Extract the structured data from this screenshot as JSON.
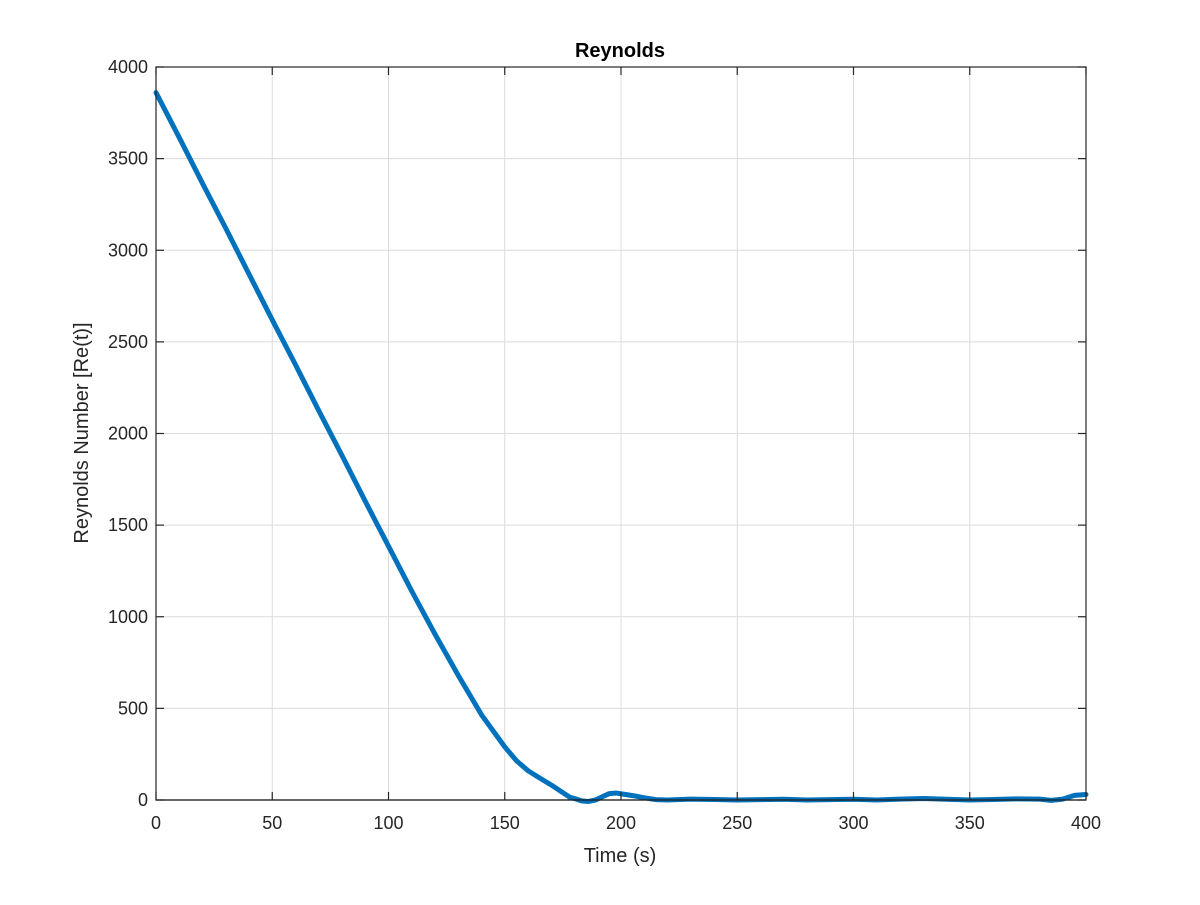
{
  "chart_data": {
    "type": "line",
    "title": "Reynolds",
    "xlabel": "Time (s)",
    "ylabel": "Reynolds Number [Re(t)]",
    "xlim": [
      0,
      400
    ],
    "ylim": [
      0,
      4000
    ],
    "xticks": [
      0,
      50,
      100,
      150,
      200,
      250,
      300,
      350,
      400
    ],
    "yticks": [
      0,
      500,
      1000,
      1500,
      2000,
      2500,
      3000,
      3500,
      4000
    ],
    "grid": true,
    "legend": "none",
    "series": [
      {
        "color": "#0072BD",
        "x": [
          0,
          10,
          20,
          30,
          40,
          50,
          60,
          70,
          80,
          90,
          100,
          110,
          120,
          130,
          140,
          150,
          155,
          160,
          165,
          170,
          175,
          178,
          180,
          183,
          186,
          189,
          192,
          195,
          198,
          202,
          206,
          210,
          215,
          220,
          230,
          240,
          250,
          260,
          270,
          280,
          290,
          300,
          310,
          320,
          330,
          340,
          350,
          360,
          370,
          380,
          385,
          390,
          395,
          400
        ],
        "y": [
          3860,
          3615,
          3365,
          3120,
          2870,
          2620,
          2375,
          2125,
          1880,
          1630,
          1385,
          1140,
          905,
          680,
          465,
          290,
          215,
          160,
          120,
          82,
          40,
          15,
          8,
          -5,
          -8,
          0,
          18,
          35,
          38,
          30,
          22,
          12,
          2,
          0,
          5,
          3,
          0,
          2,
          4,
          0,
          2,
          4,
          0,
          5,
          8,
          4,
          0,
          3,
          6,
          5,
          -2,
          5,
          25,
          30
        ]
      }
    ]
  }
}
